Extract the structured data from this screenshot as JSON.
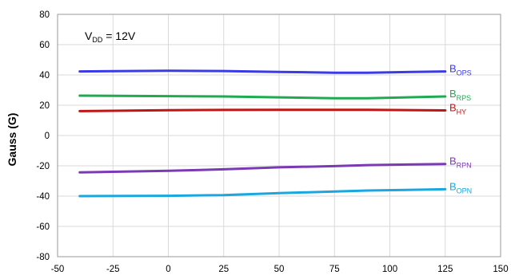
{
  "chart_data": {
    "type": "line",
    "title": "",
    "xlabel": "",
    "ylabel": "Gauss (G)",
    "xlim": [
      -50,
      150
    ],
    "ylim": [
      -80,
      80
    ],
    "x_ticks": [
      "-50",
      "-25",
      "0",
      "25",
      "50",
      "75",
      "100",
      "125",
      "150"
    ],
    "y_ticks": [
      "80",
      "60",
      "40",
      "20",
      "0",
      "-20",
      "-40",
      "-60",
      "-80"
    ],
    "grid": true,
    "annotation": {
      "main": "V",
      "sub": "DD",
      "rest": " = 12V"
    },
    "x": [
      -40,
      0,
      25,
      50,
      75,
      90,
      125
    ],
    "series": [
      {
        "name": "B",
        "name_sub": "OPS",
        "color": "#3a3ae6",
        "values": [
          42.3,
          42.8,
          42.6,
          42.0,
          41.5,
          41.5,
          42.3
        ]
      },
      {
        "name": "B",
        "name_sub": "RPS",
        "color": "#1faa52",
        "values": [
          26.3,
          26.0,
          25.8,
          25.2,
          24.6,
          24.6,
          25.8
        ]
      },
      {
        "name": "B",
        "name_sub": "HY",
        "color": "#c01515",
        "values": [
          16.1,
          16.7,
          16.9,
          17.0,
          17.0,
          17.0,
          16.6
        ]
      },
      {
        "name": "B",
        "name_sub": "RPN",
        "color": "#7a3ab4",
        "values": [
          -24.3,
          -23.3,
          -22.3,
          -21.0,
          -20.2,
          -19.5,
          -18.8
        ]
      },
      {
        "name": "B",
        "name_sub": "OPN",
        "color": "#1aa7e0",
        "values": [
          -40.0,
          -39.8,
          -39.3,
          -38.0,
          -37.0,
          -36.3,
          -35.5
        ]
      }
    ]
  }
}
